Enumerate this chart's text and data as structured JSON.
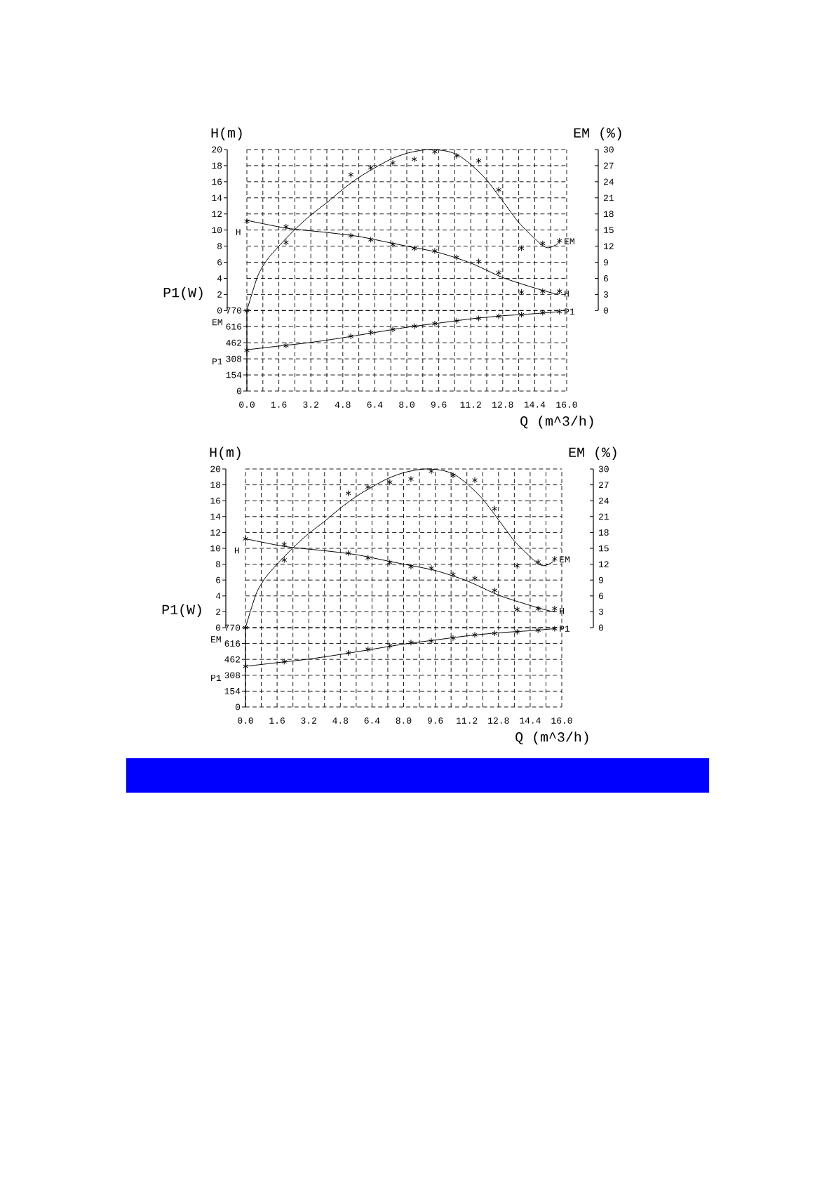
{
  "chart_data": [
    {
      "type": "line",
      "xlabel": "Q (m^3/h)",
      "ylabel": "H(m)",
      "y2label": "EM (%)",
      "y3label": "P1(W)",
      "grid": true,
      "xlim": [
        0,
        16
      ],
      "xticks": [
        {
          "value": 0,
          "label": "0.0"
        },
        {
          "value": 0.8,
          "label": null
        },
        {
          "value": 1.6,
          "label": "1.6"
        },
        {
          "value": 2.4,
          "label": null
        },
        {
          "value": 3.2,
          "label": "3.2"
        },
        {
          "value": 4.0,
          "label": null
        },
        {
          "value": 4.8,
          "label": "4.8"
        },
        {
          "value": 5.6,
          "label": null
        },
        {
          "value": 6.4,
          "label": "6.4"
        },
        {
          "value": 7.2,
          "label": null
        },
        {
          "value": 8.0,
          "label": "8.0"
        },
        {
          "value": 8.8,
          "label": null
        },
        {
          "value": 9.6,
          "label": "9.6"
        },
        {
          "value": 10.4,
          "label": null
        },
        {
          "value": 11.2,
          "label": "11.2"
        },
        {
          "value": 12.0,
          "label": null
        },
        {
          "value": 12.8,
          "label": "12.8"
        },
        {
          "value": 13.6,
          "label": null
        },
        {
          "value": 14.4,
          "label": "14.4"
        },
        {
          "value": 15.2,
          "label": null
        },
        {
          "value": 16,
          "label": "16.0"
        }
      ],
      "ylim": [
        -10,
        20
      ],
      "yticks": [
        0,
        2,
        4,
        6,
        8,
        10,
        12,
        14,
        16,
        18,
        20
      ],
      "y2lim": [
        -15,
        30
      ],
      "y2ticks": [
        0,
        3,
        6,
        9,
        12,
        15,
        18,
        21,
        24,
        27,
        30
      ],
      "y3lim": [
        0,
        2310
      ],
      "y3ticks": [
        0,
        154,
        308,
        462,
        616,
        770
      ],
      "series": [
        {
          "name": "H",
          "color": "#000000",
          "marker": "none",
          "x": [
            0,
            1.6,
            2.4,
            4.0,
            5.6,
            7.2,
            8.0,
            9.6,
            11.2,
            12.8,
            14.4,
            15.4,
            15.64
          ],
          "values": [
            11.2,
            10.4,
            10.1,
            9.7,
            9.2,
            8.4,
            8.0,
            7.2,
            5.9,
            4.1,
            2.8,
            2.1,
            2.1
          ]
        },
        {
          "type": "scatter",
          "color": "#000000",
          "marker": "cross",
          "x": [
            0,
            1.96,
            5.2,
            6.2,
            7.3,
            8.37,
            9.4,
            10.5,
            11.6,
            12.6,
            13.74,
            14.8,
            15.64
          ],
          "values": [
            11.1,
            10.4,
            9.3,
            8.8,
            8.2,
            7.7,
            7.4,
            6.6,
            6.1,
            4.7,
            2.3,
            2.4,
            2.4
          ]
        },
        {
          "name": "EM",
          "axis": "y2",
          "color": "#000000",
          "marker": "none",
          "x": [
            0,
            0.53,
            1.0,
            1.6,
            2.4,
            3.2,
            4.0,
            4.8,
            5.6,
            6.4,
            7.2,
            8.0,
            8.8,
            9.3,
            10.0,
            10.6,
            11.3,
            12.0,
            12.8,
            13.6,
            14.4,
            14.8,
            15.1,
            15.5,
            15.64
          ],
          "values": [
            0,
            6.3,
            9.4,
            12.0,
            15.1,
            17.8,
            20.1,
            22.6,
            24.8,
            26.6,
            28.2,
            29.3,
            29.9,
            30.0,
            29.7,
            28.9,
            26.9,
            24.3,
            20.4,
            16.4,
            13.4,
            12.1,
            11.7,
            12.3,
            12.9
          ]
        },
        {
          "type": "scatter",
          "axis": "y2",
          "color": "#000000",
          "marker": "cross",
          "x": [
            0,
            1.96,
            5.2,
            6.2,
            7.3,
            8.37,
            9.4,
            10.5,
            11.6,
            12.6,
            13.74,
            14.8,
            15.64
          ],
          "values": [
            0,
            12.7,
            25.3,
            26.6,
            27.5,
            28.2,
            29.6,
            28.8,
            27.9,
            22.5,
            11.6,
            12.5,
            13.0
          ]
        },
        {
          "name": "P1",
          "axis": "y3",
          "color": "#000000",
          "marker": "none",
          "x": [
            0,
            1.6,
            3.2,
            4.8,
            6.4,
            8.0,
            9.6,
            11.2,
            12.8,
            14.4,
            15.64
          ],
          "values": [
            395,
            430,
            465,
            510,
            560,
            610,
            650,
            690,
            720,
            740,
            760
          ]
        },
        {
          "type": "scatter",
          "axis": "y3",
          "color": "#000000",
          "marker": "cross",
          "x": [
            0,
            1.96,
            5.2,
            6.2,
            7.3,
            8.37,
            9.4,
            10.5,
            11.6,
            12.6,
            13.74,
            14.8,
            15.64
          ],
          "values": [
            390,
            435,
            525,
            560,
            590,
            620,
            645,
            670,
            695,
            715,
            730,
            750,
            760
          ]
        }
      ]
    },
    {
      "type": "line",
      "xlabel": "Q (m^3/h)",
      "ylabel": "H(m)",
      "y2label": "EM (%)",
      "y3label": "P1(W)",
      "grid": true,
      "xlim": [
        0,
        16
      ],
      "xticks": [
        {
          "value": 0,
          "label": "0.0"
        },
        {
          "value": 0.8,
          "label": null
        },
        {
          "value": 1.6,
          "label": "1.6"
        },
        {
          "value": 2.4,
          "label": null
        },
        {
          "value": 3.2,
          "label": "3.2"
        },
        {
          "value": 4.0,
          "label": null
        },
        {
          "value": 4.8,
          "label": "4.8"
        },
        {
          "value": 5.6,
          "label": null
        },
        {
          "value": 6.4,
          "label": "6.4"
        },
        {
          "value": 7.2,
          "label": null
        },
        {
          "value": 8.0,
          "label": "8.0"
        },
        {
          "value": 8.8,
          "label": null
        },
        {
          "value": 9.6,
          "label": "9.6"
        },
        {
          "value": 10.4,
          "label": null
        },
        {
          "value": 11.2,
          "label": "11.2"
        },
        {
          "value": 12.0,
          "label": null
        },
        {
          "value": 12.8,
          "label": "12.8"
        },
        {
          "value": 13.6,
          "label": null
        },
        {
          "value": 14.4,
          "label": "14.4"
        },
        {
          "value": 15.2,
          "label": null
        },
        {
          "value": 16,
          "label": "16.0"
        }
      ],
      "ylim": [
        -10,
        20
      ],
      "yticks": [
        0,
        2,
        4,
        6,
        8,
        10,
        12,
        14,
        16,
        18,
        20
      ],
      "y2lim": [
        -15,
        30
      ],
      "y2ticks": [
        0,
        3,
        6,
        9,
        12,
        15,
        18,
        21,
        24,
        27,
        30
      ],
      "y3lim": [
        0,
        2310
      ],
      "y3ticks": [
        0,
        154,
        308,
        462,
        616,
        770
      ],
      "series": [
        {
          "name": "H",
          "color": "#000000",
          "marker": "none",
          "x": [
            0,
            1.6,
            2.4,
            4.0,
            5.6,
            7.2,
            8.0,
            9.6,
            11.2,
            12.8,
            14.4,
            15.4,
            15.64
          ],
          "values": [
            11.2,
            10.4,
            10.1,
            9.7,
            9.2,
            8.4,
            8.0,
            7.2,
            5.9,
            4.1,
            2.8,
            2.1,
            2.1
          ]
        },
        {
          "type": "scatter",
          "color": "#000000",
          "marker": "cross",
          "x": [
            0,
            1.96,
            5.2,
            6.2,
            7.3,
            8.37,
            9.4,
            10.5,
            11.6,
            12.6,
            13.74,
            14.8,
            15.64
          ],
          "values": [
            11.2,
            10.5,
            9.4,
            8.8,
            8.2,
            7.7,
            7.5,
            6.7,
            6.2,
            4.7,
            2.3,
            2.4,
            2.4
          ]
        },
        {
          "name": "EM",
          "axis": "y2",
          "color": "#000000",
          "marker": "none",
          "x": [
            0,
            0.53,
            1.0,
            1.6,
            2.4,
            3.2,
            4.0,
            4.8,
            5.6,
            6.4,
            7.2,
            8.0,
            8.8,
            9.3,
            10.0,
            10.6,
            11.3,
            12.0,
            12.8,
            13.6,
            14.4,
            14.8,
            15.1,
            15.5,
            15.64
          ],
          "values": [
            0,
            6.3,
            9.4,
            12.0,
            15.1,
            17.8,
            20.1,
            22.6,
            24.8,
            26.6,
            28.2,
            29.3,
            29.9,
            30.0,
            29.7,
            28.9,
            26.9,
            24.3,
            20.4,
            16.4,
            13.4,
            12.1,
            11.7,
            12.3,
            12.9
          ]
        },
        {
          "type": "scatter",
          "axis": "y2",
          "color": "#000000",
          "marker": "cross",
          "x": [
            0,
            1.96,
            5.2,
            6.2,
            7.3,
            8.37,
            9.4,
            10.5,
            11.6,
            12.6,
            13.74,
            14.8,
            15.64
          ],
          "values": [
            0,
            12.8,
            25.4,
            26.6,
            27.5,
            28.1,
            29.6,
            28.8,
            27.9,
            22.5,
            11.7,
            12.4,
            13.0
          ]
        },
        {
          "name": "P1",
          "axis": "y3",
          "color": "#000000",
          "marker": "none",
          "x": [
            0,
            1.6,
            3.2,
            4.8,
            6.4,
            8.0,
            9.6,
            11.2,
            12.8,
            14.4,
            15.64
          ],
          "values": [
            395,
            430,
            465,
            510,
            560,
            610,
            650,
            690,
            720,
            740,
            760
          ]
        },
        {
          "type": "scatter",
          "axis": "y3",
          "color": "#000000",
          "marker": "cross",
          "x": [
            0,
            1.96,
            5.2,
            6.2,
            7.3,
            8.37,
            9.4,
            10.5,
            11.6,
            12.6,
            13.74,
            14.8,
            15.64
          ],
          "values": [
            395,
            440,
            525,
            560,
            595,
            625,
            640,
            670,
            700,
            715,
            730,
            745,
            760
          ]
        }
      ]
    }
  ]
}
